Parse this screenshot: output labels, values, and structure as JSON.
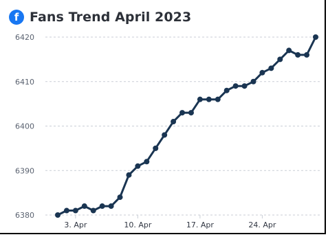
{
  "header": {
    "title": "Fans Trend April 2023",
    "icon": "facebook-icon",
    "icon_glyph": "f",
    "icon_color": "#1877f2"
  },
  "chart_data": {
    "type": "line",
    "title": "Fans Trend April 2023",
    "xlabel": "",
    "ylabel": "",
    "ylim": [
      6380,
      6420
    ],
    "yticks": [
      6380,
      6390,
      6400,
      6410,
      6420
    ],
    "grid": true,
    "legend": "none",
    "line_color": "#1a3552",
    "x_tick_labels": [
      {
        "day": 3,
        "label": "3. Apr"
      },
      {
        "day": 10,
        "label": "10. Apr"
      },
      {
        "day": 17,
        "label": "17. Apr"
      },
      {
        "day": 24,
        "label": "24. Apr"
      }
    ],
    "x": [
      "2023-04-01",
      "2023-04-02",
      "2023-04-03",
      "2023-04-04",
      "2023-04-05",
      "2023-04-06",
      "2023-04-07",
      "2023-04-08",
      "2023-04-09",
      "2023-04-10",
      "2023-04-11",
      "2023-04-12",
      "2023-04-13",
      "2023-04-14",
      "2023-04-15",
      "2023-04-16",
      "2023-04-17",
      "2023-04-18",
      "2023-04-19",
      "2023-04-20",
      "2023-04-21",
      "2023-04-22",
      "2023-04-23",
      "2023-04-24",
      "2023-04-25",
      "2023-04-26",
      "2023-04-27",
      "2023-04-28",
      "2023-04-29",
      "2023-04-30"
    ],
    "values": [
      6380,
      6381,
      6381,
      6382,
      6381,
      6382,
      6382,
      6384,
      6389,
      6391,
      6392,
      6395,
      6398,
      6401,
      6403,
      6403,
      6406,
      6406,
      6406,
      6408,
      6409,
      6409,
      6410,
      6412,
      6413,
      6415,
      6417,
      6416,
      6416,
      6420
    ]
  }
}
